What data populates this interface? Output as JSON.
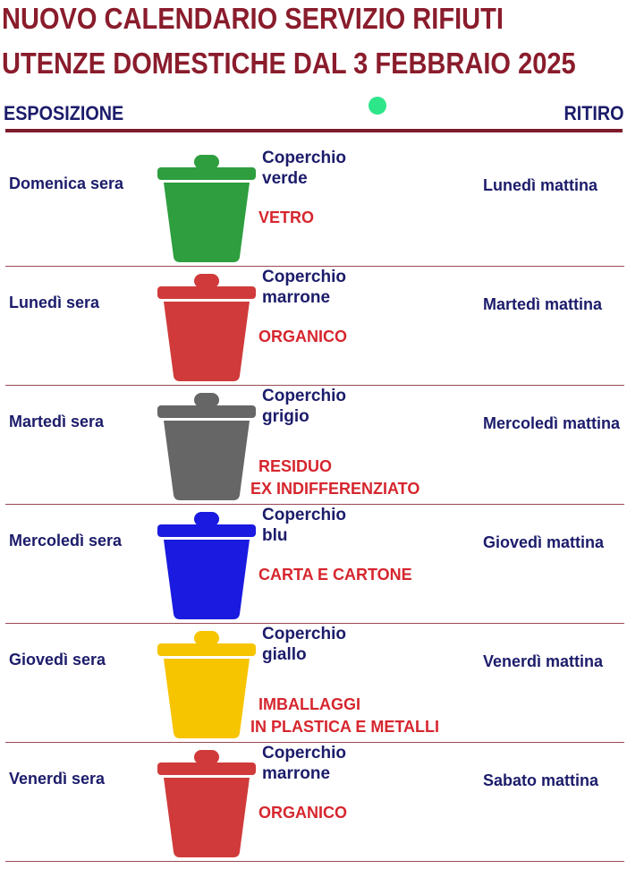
{
  "header": {
    "title": "NUOVO CALENDARIO SERVIZIO RIFIUTI",
    "subtitle": "UTENZE DOMESTICHE DAL 3 FEBBRAIO 2025",
    "col_left": "ESPOSIZIONE",
    "col_right": "RITIRO"
  },
  "rows": [
    {
      "exposure": "Domenica sera",
      "lid_line1": "Coperchio",
      "lid_line2": "verde",
      "type_line1": "VETRO",
      "type_line2": "",
      "pickup": "Lunedì mattina",
      "color": "#2e9e3e"
    },
    {
      "exposure": "Lunedì sera",
      "lid_line1": "Coperchio",
      "lid_line2": "marrone",
      "type_line1": "ORGANICO",
      "type_line2": "",
      "pickup": "Martedì mattina",
      "color": "#d03a3a"
    },
    {
      "exposure": "Martedì sera",
      "lid_line1": "Coperchio",
      "lid_line2": "grigio",
      "type_line1": "RESIDUO",
      "type_line2": "EX INDIFFERENZIATO",
      "pickup": "Mercoledì mattina",
      "color": "#666666"
    },
    {
      "exposure": "Mercoledì sera",
      "lid_line1": "Coperchio",
      "lid_line2": "blu",
      "type_line1": "CARTA E CARTONE",
      "type_line2": "",
      "pickup": "Giovedì mattina",
      "color": "#1a1ae0"
    },
    {
      "exposure": "Giovedì sera",
      "lid_line1": "Coperchio",
      "lid_line2": "giallo",
      "type_line1": "IMBALLAGGI",
      "type_line2": "IN PLASTICA E METALLI",
      "pickup": "Venerdì mattina",
      "color": "#f7c400"
    },
    {
      "exposure": "Venerdì sera",
      "lid_line1": "Coperchio",
      "lid_line2": "marrone",
      "type_line1": "ORGANICO",
      "type_line2": "",
      "pickup": "Sabato mattina",
      "color": "#d03a3a"
    }
  ]
}
